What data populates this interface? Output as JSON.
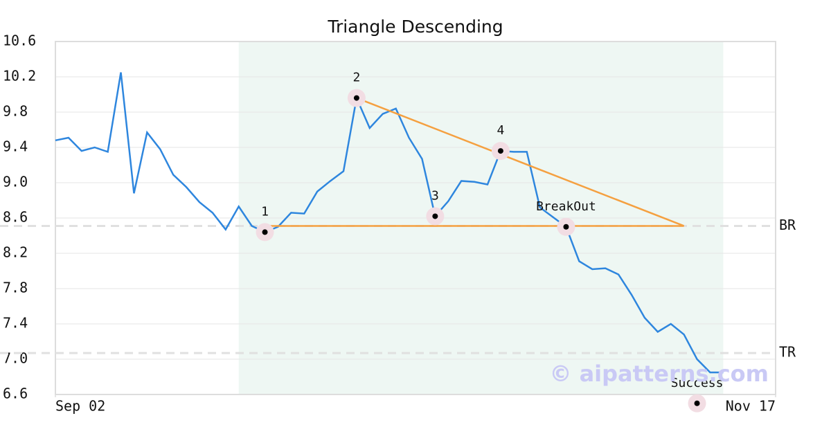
{
  "chart_data": {
    "type": "line",
    "title": "Triangle Descending",
    "color": "#2e86de",
    "values": [
      9.48,
      9.51,
      9.36,
      9.4,
      9.35,
      10.25,
      8.88,
      9.57,
      9.38,
      9.09,
      8.95,
      8.78,
      8.66,
      8.47,
      8.73,
      8.51,
      8.44,
      8.5,
      8.66,
      8.65,
      8.9,
      9.02,
      9.13,
      9.96,
      9.62,
      9.78,
      9.84,
      9.51,
      9.27,
      8.62,
      8.79,
      9.02,
      9.01,
      8.98,
      9.36,
      9.35,
      9.35,
      8.72,
      8.61,
      8.5,
      8.11,
      8.02,
      8.03,
      7.96,
      7.73,
      7.47,
      7.31,
      7.4,
      7.28,
      7.0,
      6.85,
      6.85
    ],
    "xlim": [
      0,
      55
    ],
    "xticks": [
      {
        "value": 0,
        "label": "Sep 02"
      },
      {
        "value": 55,
        "label": "Nov 17"
      }
    ],
    "ylim": [
      6.6,
      10.6
    ],
    "yticks": [
      6.6,
      {
        "value": 7,
        "label": "7.0"
      },
      7.4,
      7.8,
      8.2,
      8.6,
      {
        "value": 9,
        "label": "9.0"
      },
      9.4,
      9.8,
      10.2,
      10.6
    ],
    "grid": true,
    "shaded_range": [
      14,
      51
    ],
    "shade_color": "#eef7f3",
    "pattern_color": "#f5a040",
    "pattern_lines": [
      {
        "x": [
          16,
          48
        ],
        "values": [
          8.51,
          8.51
        ]
      },
      {
        "x": [
          23,
          48
        ],
        "values": [
          9.96,
          8.51
        ]
      }
    ],
    "levels": [
      {
        "label": "BR",
        "value": 8.51
      },
      {
        "label": "TR",
        "value": 7.07
      }
    ],
    "points": [
      {
        "label": "1",
        "x": 16,
        "value": 8.44
      },
      {
        "label": "2",
        "x": 23,
        "value": 9.96
      },
      {
        "label": "3",
        "x": 29,
        "value": 8.62
      },
      {
        "label": "4",
        "x": 34,
        "value": 9.36
      },
      {
        "label": "BreakOut",
        "x": 39,
        "value": 8.5
      },
      {
        "label": "Success",
        "x": 49,
        "value": 6.5
      }
    ],
    "watermark": "© aipatterns.com"
  }
}
